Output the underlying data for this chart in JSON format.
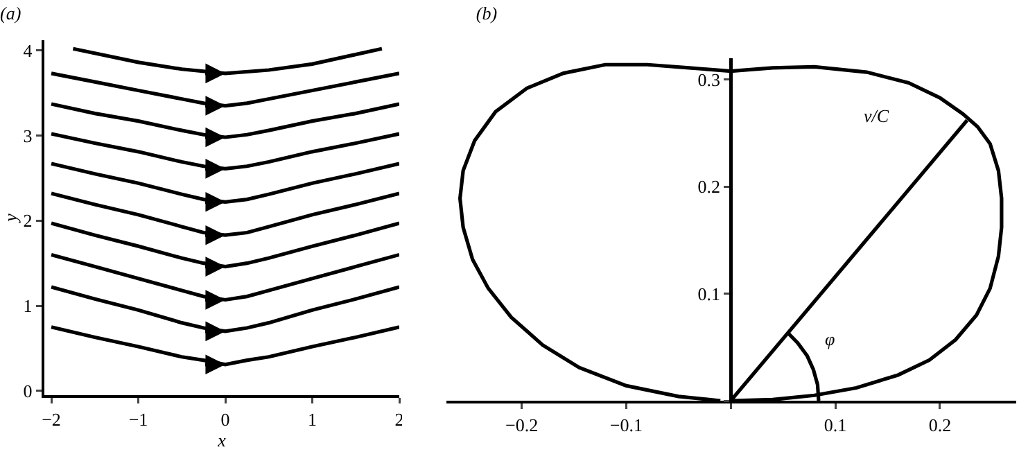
{
  "chart_data": [
    {
      "type": "line",
      "title": "(a)",
      "xlabel": "x",
      "ylabel": "y",
      "x": [
        -2,
        -1.5,
        -1,
        -0.5,
        -0.25,
        0,
        0.25,
        0.5,
        1,
        1.5,
        2
      ],
      "xlim": [
        -2.08,
        2.0
      ],
      "ylim": [
        -0.05,
        4.12
      ],
      "xticks": [
        {
          "value": -2,
          "label": "−2"
        },
        {
          "value": -1,
          "label": "−1"
        },
        0,
        1,
        2
      ],
      "yticks": [
        0,
        1,
        2,
        3,
        4
      ],
      "grid": false,
      "marker": "none",
      "line_style": "solid",
      "series": [
        {
          "color": "#000000",
          "x": [
            -1.75,
            -1,
            -0.5,
            0,
            0.5,
            1,
            1.8
          ],
          "values": [
            4.02,
            3.86,
            3.78,
            3.73,
            3.77,
            3.84,
            4.02
          ]
        },
        {
          "color": "#000000",
          "values": [
            3.73,
            3.63,
            3.53,
            3.43,
            3.38,
            3.35,
            3.38,
            3.43,
            3.53,
            3.63,
            3.73
          ]
        },
        {
          "color": "#000000",
          "values": [
            3.37,
            3.26,
            3.17,
            3.06,
            3.01,
            2.98,
            3.01,
            3.06,
            3.17,
            3.26,
            3.37
          ]
        },
        {
          "color": "#000000",
          "values": [
            3.02,
            2.91,
            2.81,
            2.69,
            2.64,
            2.61,
            2.64,
            2.69,
            2.81,
            2.91,
            3.02
          ]
        },
        {
          "color": "#000000",
          "values": [
            2.67,
            2.55,
            2.44,
            2.31,
            2.25,
            2.22,
            2.25,
            2.31,
            2.44,
            2.55,
            2.67
          ]
        },
        {
          "color": "#000000",
          "values": [
            2.32,
            2.19,
            2.07,
            1.93,
            1.86,
            1.83,
            1.86,
            1.93,
            2.07,
            2.19,
            2.32
          ]
        },
        {
          "color": "#000000",
          "values": [
            1.97,
            1.83,
            1.7,
            1.56,
            1.5,
            1.46,
            1.5,
            1.56,
            1.7,
            1.83,
            1.97
          ]
        },
        {
          "color": "#000000",
          "values": [
            1.6,
            1.46,
            1.32,
            1.18,
            1.11,
            1.07,
            1.11,
            1.18,
            1.32,
            1.46,
            1.6
          ]
        },
        {
          "color": "#000000",
          "values": [
            1.22,
            1.08,
            0.95,
            0.8,
            0.74,
            0.7,
            0.74,
            0.8,
            0.95,
            1.08,
            1.22
          ]
        },
        {
          "color": "#000000",
          "values": [
            0.75,
            0.63,
            0.52,
            0.4,
            0.36,
            0.31,
            0.36,
            0.4,
            0.52,
            0.63,
            0.75
          ]
        }
      ]
    },
    {
      "type": "line",
      "title": "(b)",
      "xlim": [
        -0.272,
        0.273
      ],
      "ylim": [
        0,
        0.32
      ],
      "xticks": [
        {
          "value": -0.2,
          "label": "−0.2"
        },
        {
          "value": -0.1,
          "label": "−0.1"
        },
        {
          "value": 0,
          "label": null
        },
        0.1,
        0.2
      ],
      "yticks": [
        {
          "value": 0,
          "label": null
        },
        0.1,
        0.2,
        0.3
      ],
      "grid": false,
      "marker": "none",
      "line_style": "solid",
      "annotations": [
        "v/C",
        "φ"
      ],
      "series": [
        {
          "color": "#000000",
          "x": [
            0,
            0.226
          ],
          "values": [
            0,
            0.262
          ]
        },
        {
          "color": "#000000",
          "x": [
            0.084,
            0.083,
            0.079,
            0.073,
            0.064,
            0.055
          ],
          "values": [
            0,
            0.015,
            0.029,
            0.042,
            0.054,
            0.063
          ]
        },
        {
          "color": "#000000",
          "x": [
            0,
            0.04,
            0.08,
            0.12,
            0.16,
            0.19,
            0.215,
            0.235,
            0.248,
            0.256,
            0.259,
            0.259,
            0.256,
            0.248,
            0.236,
            0.222,
            0.2,
            0.17,
            0.13,
            0.08,
            0.04,
            0,
            -0.04,
            -0.08,
            -0.12,
            -0.16,
            -0.195,
            -0.225,
            -0.245,
            -0.256,
            -0.259,
            -0.256,
            -0.247,
            -0.232,
            -0.21,
            -0.18,
            -0.145,
            -0.1,
            -0.05,
            -0.01
          ],
          "values": [
            0,
            0.001,
            0.005,
            0.012,
            0.024,
            0.038,
            0.057,
            0.08,
            0.105,
            0.135,
            0.162,
            0.189,
            0.215,
            0.24,
            0.256,
            0.268,
            0.283,
            0.297,
            0.307,
            0.312,
            0.311,
            0.308,
            0.311,
            0.314,
            0.314,
            0.306,
            0.292,
            0.27,
            0.243,
            0.215,
            0.189,
            0.162,
            0.132,
            0.105,
            0.078,
            0.052,
            0.031,
            0.014,
            0.004,
            0
          ]
        }
      ]
    }
  ]
}
